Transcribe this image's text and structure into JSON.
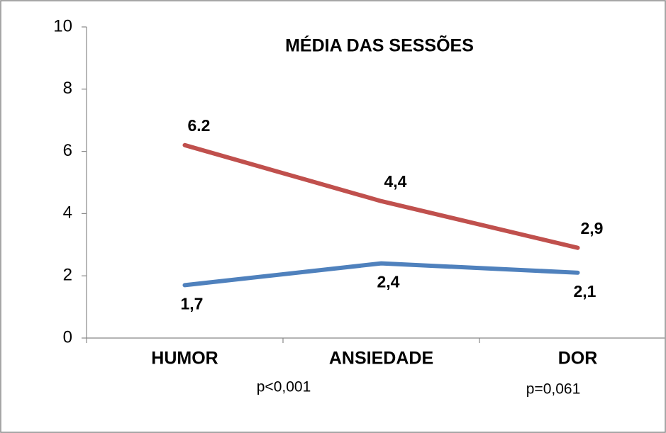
{
  "chart_data": {
    "type": "line",
    "title": "MÉDIA DAS SESSÕES",
    "categories": [
      "HUMOR",
      "ANSIEDADE",
      "DOR"
    ],
    "series": [
      {
        "color": "#c0504d",
        "values": [
          6.2,
          4.4,
          2.9
        ],
        "value_labels": [
          "6.2",
          "4,4",
          "2,9"
        ]
      },
      {
        "color": "#4f81bd",
        "values": [
          1.7,
          2.4,
          2.1
        ],
        "value_labels": [
          "1,7",
          "2,4",
          "2,1"
        ]
      }
    ],
    "annotations": [
      "p<0,001",
      "p=0,061"
    ],
    "ylim": [
      0,
      10
    ],
    "yticks": [
      0,
      2,
      4,
      6,
      8,
      10
    ],
    "grid": false
  }
}
